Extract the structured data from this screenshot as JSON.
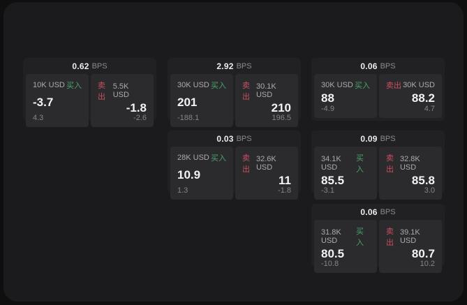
{
  "page": {
    "background_color": "#0f0f10",
    "panel_color": "#1b1b1d"
  },
  "colors": {
    "buy_accent": "#46a56d",
    "sell_accent": "#c94f5e"
  },
  "labels": {
    "bps_unit": "BPS",
    "buy_tag": "买入",
    "sell_tag": "卖出"
  },
  "cards": [
    {
      "bps": "0.62",
      "buy_amount": "10K USD",
      "buy_value": "-3.7",
      "buy_sub": "4.3",
      "sell_amount": "5.5K USD",
      "sell_value": "-1.8",
      "sell_sub": "-2.6"
    },
    {
      "bps": "2.92",
      "buy_amount": "30K USD",
      "buy_value": "201",
      "buy_sub": "-188.1",
      "sell_amount": "30.1K USD",
      "sell_value": "210",
      "sell_sub": "196.5"
    },
    {
      "bps": "0.06",
      "buy_amount": "30K USD",
      "buy_value": "88",
      "buy_sub": "-4.9",
      "sell_amount": "30K USD",
      "sell_value": "88.2",
      "sell_sub": "4.7"
    },
    {
      "bps": "0.03",
      "buy_amount": "28K USD",
      "buy_value": "10.9",
      "buy_sub": "1.3",
      "sell_amount": "32.6K USD",
      "sell_value": "11",
      "sell_sub": "-1.8"
    },
    {
      "bps": "0.09",
      "buy_amount": "34.1K USD",
      "buy_value": "85.5",
      "buy_sub": "-3.1",
      "sell_amount": "32.8K USD",
      "sell_value": "85.8",
      "sell_sub": "3.0"
    },
    {
      "bps": "0.06",
      "buy_amount": "31.8K USD",
      "buy_value": "80.5",
      "buy_sub": "-10.8",
      "sell_amount": "39.1K USD",
      "sell_value": "80.7",
      "sell_sub": "10.2"
    }
  ]
}
